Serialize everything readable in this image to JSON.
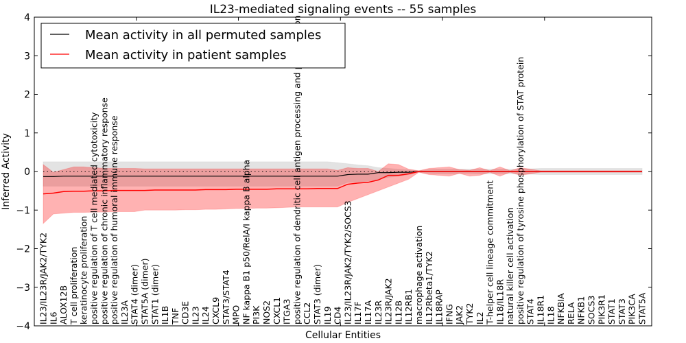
{
  "chart_data": {
    "type": "line",
    "title": "IL23-mediated signaling events -- 55 samples",
    "xlabel": "Cellular Entities",
    "ylabel": "Inferred Activity",
    "ylim": [
      -4,
      4
    ],
    "yticks": [
      -4,
      -3,
      -2,
      -1,
      0,
      1,
      2,
      3,
      4
    ],
    "ytick_labels": [
      "−4",
      "−3",
      "−2",
      "−1",
      "0",
      "1",
      "2",
      "3",
      "4"
    ],
    "grid": false,
    "legend_position": "top-left",
    "reference_line": 0,
    "categories": [
      "IL23/IL23R/JAK2/TYK2",
      "IL6",
      "ALOX12B",
      "T cell proliferation",
      "keratinocyte proliferation",
      "positive regulation of T cell mediated cytotoxicity",
      "positive regulation of chronic inflammatory response",
      "positive regulation of humoral immune response",
      "IL23A",
      "STAT4 (dimer)",
      "STAT5A (dimer)",
      "STAT1 (dimer)",
      "IL1B",
      "TNF",
      "CD3E",
      "IL23",
      "IL24",
      "CXCL9",
      "STAT3/STAT4",
      "MPO",
      "NF kappa B1 p50/RelA/I kappa B alpha",
      "PI3K",
      "NOS2",
      "CXCL1",
      "ITGA3",
      "positive regulation of dendritic cell antigen processing and presentation",
      "CCL2",
      "STAT3 (dimer)",
      "IL19",
      "CD4",
      "IL23/IL23R/JAK2/TYK2/SOCS3",
      "IL17F",
      "IL17A",
      "IL23R",
      "IL23R/JAK2",
      "IL12B",
      "IL12RB1",
      "macrophage activation",
      "IL12Rbeta1/TYK2",
      "IL18RAP",
      "IFNG",
      "JAK2",
      "TYK2",
      "IL2",
      "T-helper cell lineage commitment",
      "IL18/IL18R",
      "natural killer cell activation",
      "positive regulation of tyrosine phosphorylation of STAT protein",
      "STAT4",
      "IL18R1",
      "IL18",
      "NFKBIA",
      "RELA",
      "NFKB1",
      "SOCS3",
      "PIK3R1",
      "STAT1",
      "STAT3",
      "PIK3CA",
      "STAT5A"
    ],
    "series": [
      {
        "name": "Mean activity in all permuted samples",
        "color": "#000000",
        "values": [
          -0.13,
          -0.13,
          -0.12,
          -0.12,
          -0.12,
          -0.12,
          -0.12,
          -0.12,
          -0.12,
          -0.12,
          -0.12,
          -0.12,
          -0.12,
          -0.12,
          -0.12,
          -0.12,
          -0.12,
          -0.12,
          -0.12,
          -0.12,
          -0.12,
          -0.12,
          -0.12,
          -0.12,
          -0.12,
          -0.12,
          -0.12,
          -0.12,
          -0.12,
          -0.12,
          -0.08,
          -0.07,
          -0.07,
          -0.03,
          -0.03,
          -0.02,
          -0.02,
          0,
          0,
          0,
          0,
          0,
          0,
          0,
          0,
          0,
          0,
          0,
          0,
          0,
          0,
          0,
          0,
          0,
          0,
          0,
          0,
          0,
          0,
          0
        ],
        "band_lower": [
          -0.38,
          -0.38,
          -0.38,
          -0.38,
          -0.38,
          -0.38,
          -0.38,
          -0.38,
          -0.38,
          -0.38,
          -0.38,
          -0.38,
          -0.38,
          -0.38,
          -0.38,
          -0.38,
          -0.38,
          -0.38,
          -0.38,
          -0.38,
          -0.38,
          -0.38,
          -0.38,
          -0.38,
          -0.38,
          -0.38,
          -0.38,
          -0.38,
          -0.38,
          -0.38,
          -0.28,
          -0.27,
          -0.25,
          -0.2,
          -0.15,
          -0.12,
          -0.08,
          -0.02,
          -0.05,
          -0.06,
          -0.06,
          -0.05,
          -0.05,
          -0.06,
          -0.06,
          -0.05,
          -0.06,
          -0.06,
          -0.07,
          -0.08,
          -0.08,
          -0.08,
          -0.08,
          -0.08,
          -0.08,
          -0.08,
          -0.08,
          -0.08,
          -0.08,
          -0.08
        ],
        "band_upper": [
          0.25,
          0.25,
          0.25,
          0.25,
          0.25,
          0.25,
          0.25,
          0.25,
          0.25,
          0.25,
          0.25,
          0.25,
          0.25,
          0.25,
          0.25,
          0.25,
          0.25,
          0.25,
          0.25,
          0.25,
          0.25,
          0.25,
          0.25,
          0.25,
          0.25,
          0.25,
          0.25,
          0.25,
          0.25,
          0.23,
          0.2,
          0.17,
          0.15,
          0.1,
          0.08,
          0.06,
          0.04,
          0.02,
          0.05,
          0.06,
          0.06,
          0.06,
          0.06,
          0.06,
          0.06,
          0.06,
          0.06,
          0.06,
          0.07,
          0.08,
          0.08,
          0.08,
          0.08,
          0.08,
          0.08,
          0.08,
          0.08,
          0.08,
          0.08,
          0.08
        ]
      },
      {
        "name": "Mean activity in patient samples",
        "color": "#ff0000",
        "values": [
          -0.58,
          -0.56,
          -0.52,
          -0.51,
          -0.51,
          -0.5,
          -0.5,
          -0.49,
          -0.49,
          -0.49,
          -0.49,
          -0.48,
          -0.48,
          -0.48,
          -0.48,
          -0.48,
          -0.47,
          -0.47,
          -0.47,
          -0.46,
          -0.46,
          -0.46,
          -0.46,
          -0.45,
          -0.45,
          -0.45,
          -0.45,
          -0.44,
          -0.44,
          -0.44,
          -0.33,
          -0.3,
          -0.28,
          -0.22,
          -0.1,
          -0.1,
          -0.06,
          0,
          0,
          0,
          0,
          0,
          0,
          0,
          0,
          0,
          0,
          0,
          0,
          0,
          0,
          0,
          0,
          0,
          0,
          0,
          0,
          0,
          0,
          0
        ],
        "band_lower": [
          -1.35,
          -1.1,
          -1.08,
          -1.06,
          -1.06,
          -1.05,
          -1.05,
          -1.04,
          -1.04,
          -1.04,
          -1.0,
          -1.0,
          -1.0,
          -1.0,
          -0.99,
          -0.99,
          -0.98,
          -0.98,
          -0.97,
          -0.96,
          -0.96,
          -0.95,
          -0.95,
          -0.94,
          -0.93,
          -0.92,
          -0.92,
          -0.92,
          -0.92,
          -0.92,
          -0.8,
          -0.7,
          -0.6,
          -0.5,
          -0.4,
          -0.3,
          -0.2,
          -0.02,
          -0.08,
          -0.1,
          -0.12,
          -0.05,
          -0.12,
          -0.1,
          -0.02,
          -0.12,
          -0.02,
          -0.1,
          -0.06,
          -0.02,
          -0.02,
          -0.02,
          -0.02,
          -0.02,
          -0.02,
          -0.02,
          -0.02,
          -0.02,
          -0.02,
          -0.02
        ],
        "band_upper": [
          0.18,
          -0.02,
          0.05,
          0.12,
          0.12,
          0.1,
          0.08,
          0.08,
          0.08,
          0.08,
          0.07,
          0.07,
          0.07,
          0.07,
          0.07,
          0.07,
          0.07,
          0.07,
          0.07,
          0.07,
          0.07,
          0.07,
          0.07,
          0.07,
          0.07,
          0.07,
          0.07,
          0.07,
          0.07,
          0.03,
          0.1,
          0.08,
          0.08,
          0.0,
          0.2,
          0.18,
          0.06,
          0.02,
          0.08,
          0.1,
          0.12,
          0.05,
          0.03,
          0.1,
          0.02,
          0.12,
          0.02,
          0.1,
          0.06,
          0.02,
          0.02,
          0.02,
          0.02,
          0.02,
          0.02,
          0.02,
          0.02,
          0.02,
          0.02,
          0.02
        ]
      }
    ]
  }
}
